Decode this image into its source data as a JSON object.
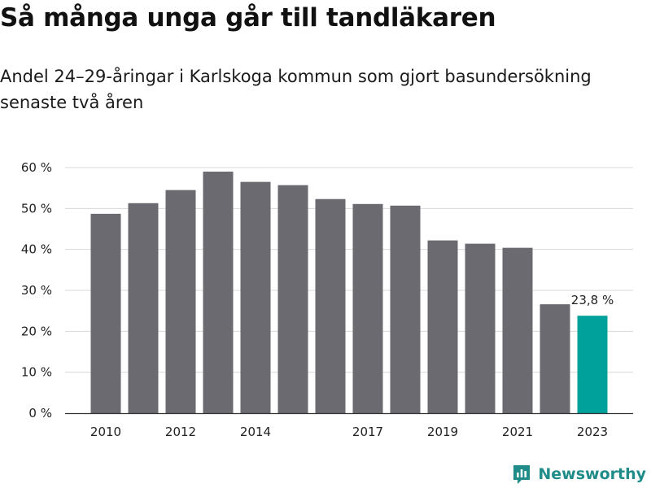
{
  "header": {
    "title": "Så många unga går till tandläkaren",
    "subtitle": "Andel 24–29-åringar i Karlskoga kommun som gjort basundersökning senaste två åren"
  },
  "brand": {
    "name": "Newsworthy"
  },
  "colors": {
    "bar": "#6b6a70",
    "highlight": "#00a19a",
    "grid": "#d8d8d8",
    "brand": "#1f8c8a"
  },
  "chart_data": {
    "type": "bar",
    "categories": [
      "2010",
      "2011",
      "2012",
      "2013",
      "2014",
      "2015",
      "2016",
      "2017",
      "2018",
      "2019",
      "2020",
      "2021",
      "2022",
      "2023"
    ],
    "x_tick_labels": [
      "2010",
      "2012",
      "2014",
      "2017",
      "2019",
      "2021",
      "2023"
    ],
    "values": [
      48.7,
      51.3,
      54.5,
      59.0,
      56.5,
      55.7,
      52.3,
      51.1,
      50.7,
      42.2,
      41.4,
      40.4,
      26.6,
      23.8
    ],
    "highlight_index": 13,
    "highlight_label": "23,8 %",
    "ylim": [
      0,
      60
    ],
    "yticks": [
      0,
      10,
      20,
      30,
      40,
      50,
      60
    ],
    "ytick_labels": [
      "0 %",
      "10 %",
      "20 %",
      "30 %",
      "40 %",
      "50 %",
      "60 %"
    ],
    "grid": true
  }
}
